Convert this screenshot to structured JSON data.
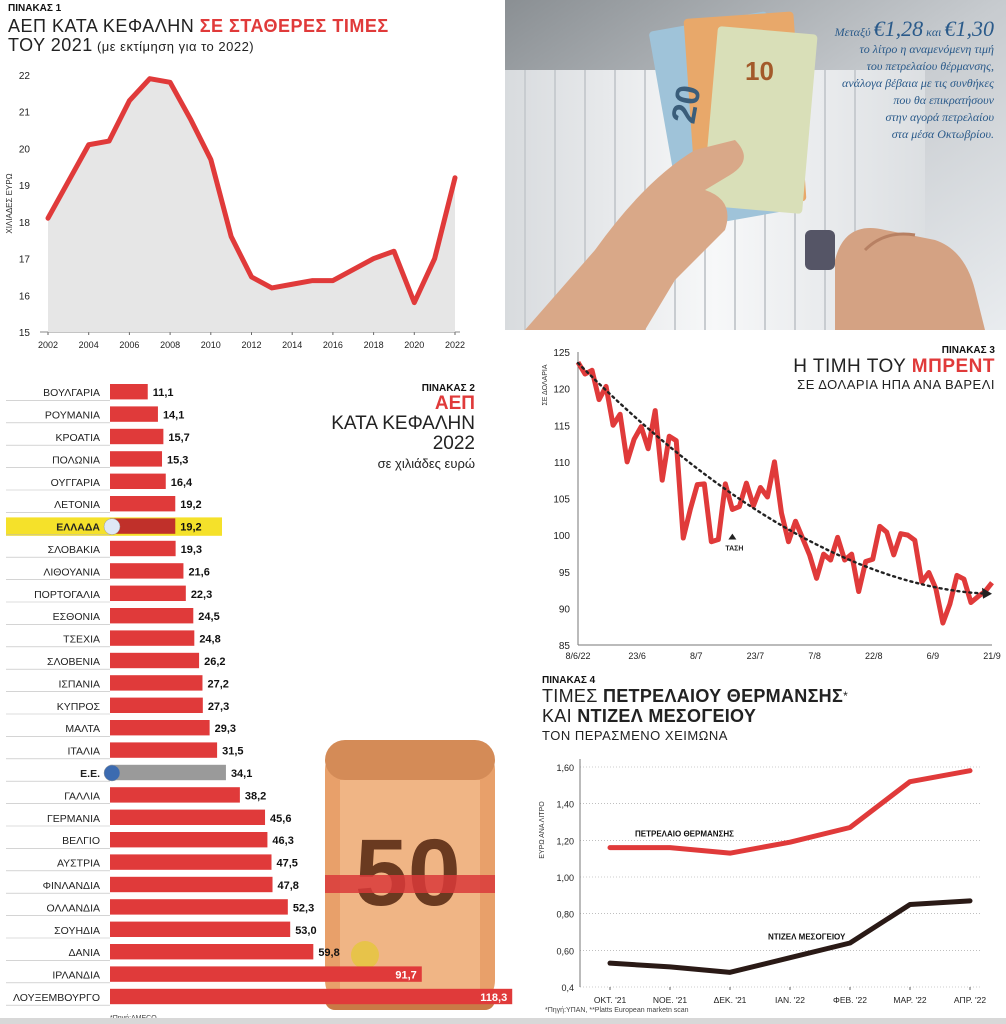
{
  "panel1": {
    "tag": "ΠΙΝΑΚΑΣ 1",
    "title_a": "ΑΕΠ ΚΑΤΑ ΚΕΦΑΛΗΝ ",
    "title_b": "ΣΕ ΣΤΑΘΕΡΕΣ ΤΙΜΕΣ",
    "title_c": "ΤΟΥ 2021",
    "title_d": " (με εκτίμηση για το 2022)",
    "chart_data": {
      "type": "area",
      "ylabel": "ΧΙΛΙΑΔΕΣ ΕΥΡΩ",
      "ylim": [
        15,
        22
      ],
      "yticks": [
        "15",
        "16",
        "17",
        "18",
        "19",
        "20",
        "21",
        "22"
      ],
      "xticks": [
        "2002",
        "2004",
        "2006",
        "2008",
        "2010",
        "2012",
        "2014",
        "2016",
        "2018",
        "2020",
        "2022"
      ],
      "x": [
        2002,
        2003,
        2004,
        2005,
        2006,
        2007,
        2008,
        2009,
        2010,
        2011,
        2012,
        2013,
        2014,
        2015,
        2016,
        2017,
        2018,
        2019,
        2020,
        2021,
        2022
      ],
      "values": [
        18.1,
        19.1,
        20.1,
        20.2,
        21.3,
        21.9,
        21.8,
        20.8,
        19.7,
        17.6,
        16.5,
        16.2,
        16.3,
        16.4,
        16.4,
        16.7,
        17.0,
        17.2,
        15.8,
        17.0,
        19.2
      ],
      "color": "#e03a3a",
      "fill": "#e6e6e6"
    }
  },
  "caption": {
    "prefix": "Μεταξύ ",
    "v1": "€1,28",
    "mid": " και ",
    "v2": "€1,30",
    "lines": [
      "το λίτρο η αναμενόμενη τιμή",
      "του πετρελαίου θέρμανσης,",
      "ανάλογα βέβαια με τις συνθήκες",
      "που θα επικρατήσουν",
      "στην αγορά πετρελαίου",
      "στα μέσα Οκτωβρίου."
    ]
  },
  "panel2": {
    "tag": "ΠΙΝΑΚΑΣ 2",
    "title_a": "ΑΕΠ",
    "title_b": "ΚΑΤΑ ΚΕΦΑΛΗΝ",
    "title_c": "2022",
    "subtitle": "σε χιλιάδες ευρώ",
    "source": "*Πηγή:AMECO",
    "chart_data": {
      "type": "bar",
      "orientation": "horizontal",
      "categories": [
        "ΒΟΥΛΓΑΡΙΑ",
        "ΡΟΥΜΑΝΙΑ",
        "ΚΡΟΑΤΙΑ",
        "ΠΟΛΩΝΙΑ",
        "ΟΥΓΓΑΡΙΑ",
        "ΛΕΤΟΝΙΑ",
        "ΕΛΛΑΔΑ",
        "ΣΛΟΒΑΚΙΑ",
        "ΛΙΘΟΥΑΝΙΑ",
        "ΠΟΡΤΟΓΑΛΙΑ",
        "ΕΣΘΟΝΙΑ",
        "ΤΣΕΧΙΑ",
        "ΣΛΟΒΕΝΙΑ",
        "ΙΣΠΑΝΙΑ",
        "ΚΥΠΡΟΣ",
        "ΜΑΛΤΑ",
        "ΙΤΑΛΙΑ",
        "Ε.Ε.",
        "ΓΑΛΛΙΑ",
        "ΓΕΡΜΑΝΙΑ",
        "ΒΕΛΓΙΟ",
        "ΑΥΣΤΡΙΑ",
        "ΦΙΝΛΑΝΔΙΑ",
        "ΟΛΛΑΝΔΙΑ",
        "ΣΟΥΗΔΙΑ",
        "ΔΑΝΙΑ",
        "ΙΡΛΑΝΔΙΑ",
        "ΛΟΥΞΕΜΒΟΥΡΓΟ"
      ],
      "values": [
        11.1,
        14.1,
        15.7,
        15.3,
        16.4,
        19.2,
        19.2,
        19.3,
        21.6,
        22.3,
        24.5,
        24.8,
        26.2,
        27.2,
        27.3,
        29.3,
        31.5,
        34.1,
        38.2,
        45.6,
        46.3,
        47.5,
        47.8,
        52.3,
        53.0,
        59.8,
        91.7,
        118.3
      ],
      "labels": [
        "11,1",
        "14,1",
        "15,7",
        "15,3",
        "16,4",
        "19,2",
        "19,2",
        "19,3",
        "21,6",
        "22,3",
        "24,5",
        "24,8",
        "26,2",
        "27,2",
        "27,3",
        "29,3",
        "31,5",
        "34,1",
        "38,2",
        "45,6",
        "46,3",
        "47,5",
        "47,8",
        "52,3",
        "53,0",
        "59,8",
        "91,7",
        "118,3"
      ],
      "highlight": {
        "ΕΛΛΑΔΑ": "#c0302a",
        "Ε.Ε.": "#9a9a9a"
      },
      "highlight_bg": "#f5e12a",
      "color": "#e03a3a"
    }
  },
  "panel3": {
    "tag": "ΠΙΝΑΚΑΣ 3",
    "title_a": "Η ΤΙΜΗ ΤΟΥ ",
    "title_b": "ΜΠΡΕΝΤ",
    "subtitle": "ΣΕ ΔΟΛΑΡΙΑ ΗΠΑ ΑΝΑ ΒΑΡΕΛΙ",
    "trend_label": "ΤΑΣΗ",
    "chart_data": {
      "type": "line",
      "ylabel": "ΣΕ ΔΟΛΑΡΙΑ",
      "ylim": [
        85,
        125
      ],
      "yticks": [
        "85",
        "90",
        "95",
        "100",
        "105",
        "110",
        "115",
        "120",
        "125"
      ],
      "xticks": [
        "8/6/22",
        "23/6",
        "8/7",
        "23/7",
        "7/8",
        "22/8",
        "6/9",
        "21/9"
      ],
      "values": [
        123.6,
        122.0,
        122.5,
        118.5,
        120.3,
        115.0,
        116.5,
        110.0,
        113.1,
        114.8,
        111.8,
        117.0,
        107.5,
        113.5,
        112.9,
        99.6,
        103.5,
        106.9,
        107.0,
        99.1,
        99.4,
        107.0,
        103.5,
        103.9,
        107.1,
        104.0,
        106.5,
        105.2,
        110.0,
        103.0,
        99.1,
        101.9,
        99.6,
        97.3,
        94.1,
        97.4,
        96.6,
        99.7,
        96.6,
        97.4,
        92.3,
        96.4,
        96.7,
        101.2,
        100.4,
        97.3,
        100.2,
        100.0,
        99.3,
        93.6,
        94.9,
        92.7,
        88.0,
        90.6,
        94.5,
        94.0,
        90.8,
        91.6,
        92.3,
        93.5
      ],
      "trend": [
        123.5,
        92.0
      ],
      "color": "#e03a3a",
      "trend_color": "#222222"
    }
  },
  "panel4": {
    "tag": "ΠΙΝΑΚΑΣ 4",
    "title_a": "ΤΙΜΕΣ ",
    "title_b": "ΠΕΤΡΕΛΑΙΟΥ ΘΕΡΜΑΝΣΗΣ",
    "title_star": "*",
    "title_c": "ΚΑΙ ",
    "title_d": "ΝΤΙΖΕΛ ΜΕΣΟΓΕΙΟΥ",
    "subtitle": "ΤΟΝ ΠΕΡΑΣΜΕΝΟ ΧΕΙΜΩΝΑ",
    "source": "*Πηγή:ΥΠΑΝ, **Platts European marketn scan",
    "chart_data": {
      "type": "line",
      "ylabel": "ΕΥΡΩ ΑΝΑ ΛΙΤΡΟ",
      "ylim": [
        0.4,
        1.6
      ],
      "yticks": [
        "0,4",
        "0,60",
        "0,80",
        "1,00",
        "1,20",
        "1,40",
        "1,60"
      ],
      "categories": [
        "ΟΚΤ. '21",
        "ΝΟΕ. '21",
        "ΔΕΚ. '21",
        "ΙΑΝ. '22",
        "ΦΕΒ. '22",
        "ΜΑΡ. '22",
        "ΑΠΡ. '22"
      ],
      "series": [
        {
          "name": "ΠΕΤΡΕΛΑΙΟ ΘΕΡΜΑΝΣΗΣ",
          "values": [
            1.16,
            1.16,
            1.13,
            1.19,
            1.27,
            1.52,
            1.58
          ],
          "color": "#e03a3a"
        },
        {
          "name": "ΝΤΙΖΕΛ ΜΕΣΟΓΕΙΟΥ",
          "values": [
            0.53,
            0.51,
            0.48,
            0.56,
            0.64,
            0.85,
            0.87
          ],
          "color": "#2a1a16"
        }
      ]
    }
  }
}
